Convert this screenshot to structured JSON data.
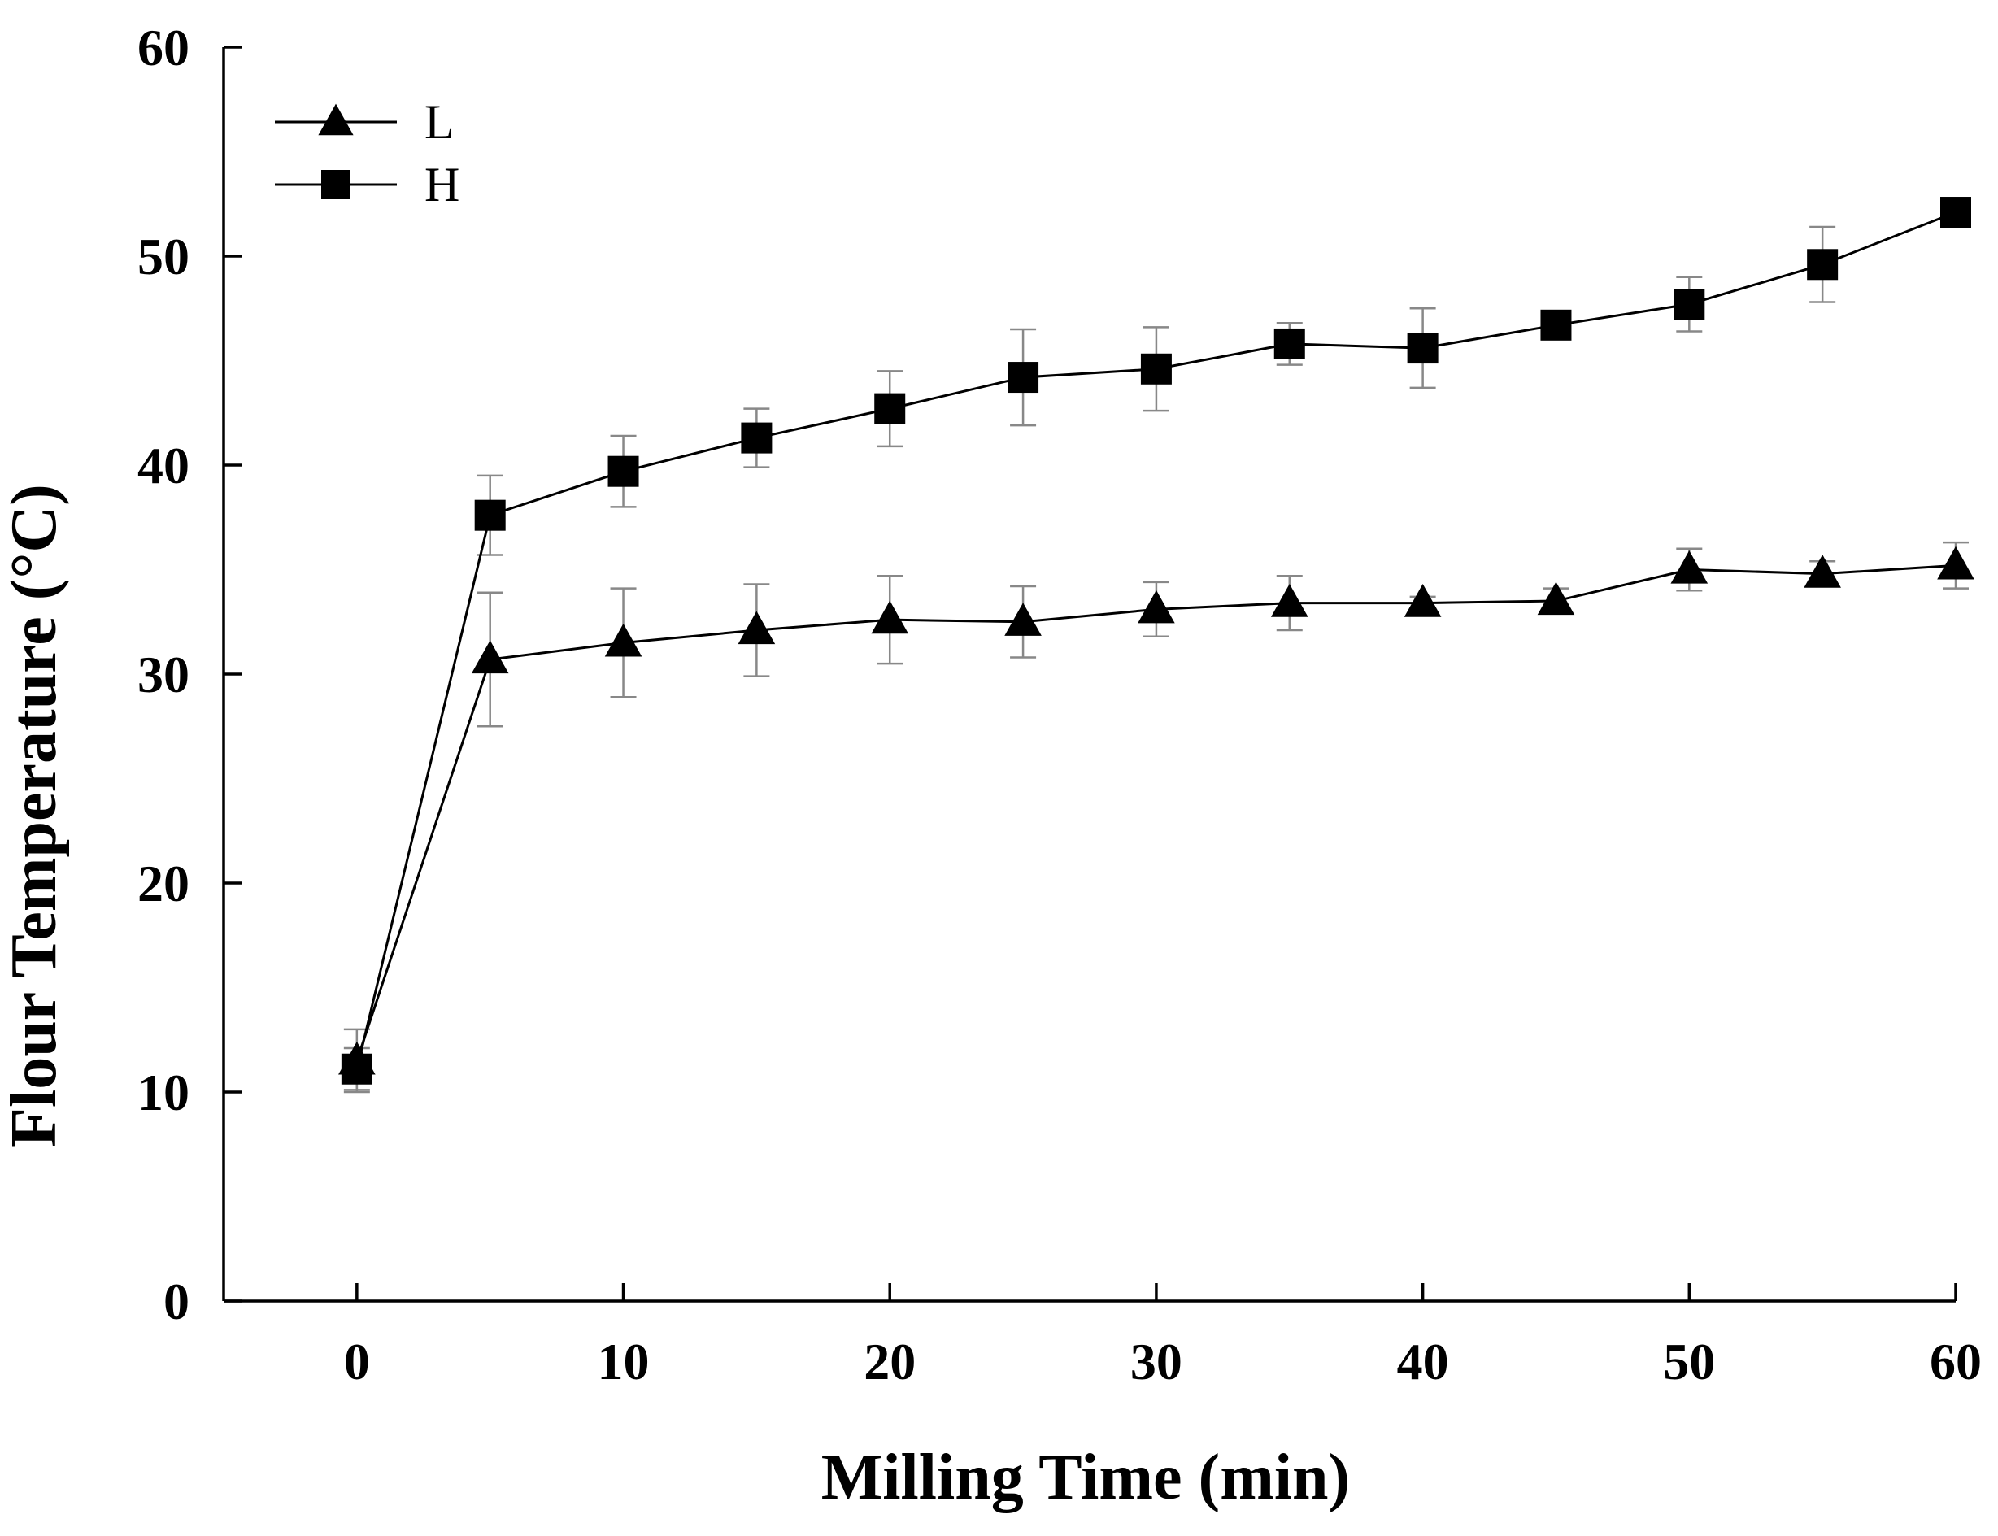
{
  "chart_data": {
    "type": "line",
    "title": "",
    "xlabel": "Milling Time (min)",
    "ylabel": "Flour Temperature (°C)",
    "xlim": [
      -5,
      60
    ],
    "ylim": [
      0,
      60
    ],
    "xticks": [
      0,
      10,
      20,
      30,
      40,
      50,
      60
    ],
    "xtick_labels": [
      "0",
      "10",
      "20",
      "30",
      "40",
      "50",
      "60"
    ],
    "yticks": [
      0,
      10,
      20,
      30,
      40,
      50,
      60
    ],
    "ytick_labels": [
      "0",
      "10",
      "20",
      "30",
      "40",
      "50",
      "60"
    ],
    "grid": false,
    "legend_position": "top-left",
    "x": [
      0,
      5,
      10,
      15,
      20,
      25,
      30,
      35,
      40,
      45,
      50,
      55,
      60
    ],
    "series": [
      {
        "name": "L",
        "marker": "triangle",
        "values": [
          11.5,
          30.7,
          31.5,
          32.1,
          32.6,
          32.5,
          33.1,
          33.4,
          33.4,
          33.5,
          35.0,
          34.8,
          35.2
        ],
        "errors": [
          1.5,
          3.2,
          2.6,
          2.2,
          2.1,
          1.7,
          1.3,
          1.3,
          0.3,
          0.6,
          1.0,
          0.6,
          1.1
        ]
      },
      {
        "name": "H",
        "marker": "square",
        "values": [
          11.1,
          37.6,
          39.7,
          41.3,
          42.7,
          44.2,
          44.6,
          45.8,
          45.6,
          46.7,
          47.7,
          49.6,
          52.1
        ],
        "errors": [
          1.0,
          1.9,
          1.7,
          1.4,
          1.8,
          2.3,
          2.0,
          1.0,
          1.9,
          0.5,
          1.3,
          1.8,
          0.5
        ]
      }
    ]
  }
}
